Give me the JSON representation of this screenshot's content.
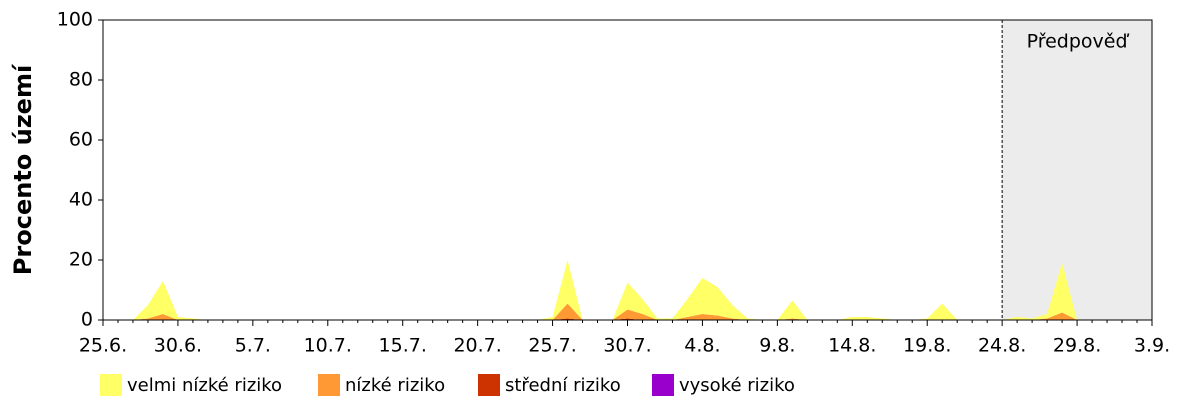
{
  "chart_data": {
    "type": "stacked-area",
    "y_label": "Procento území",
    "forecast": {
      "label": "Předpověď",
      "from": "24.8."
    },
    "categories": [
      "25.6.",
      null,
      null,
      null,
      null,
      "30.6.",
      null,
      null,
      null,
      null,
      "5.7.",
      null,
      null,
      null,
      null,
      "10.7.",
      null,
      null,
      null,
      null,
      "15.7.",
      null,
      null,
      null,
      null,
      "20.7.",
      null,
      null,
      null,
      null,
      "25.7.",
      null,
      null,
      null,
      null,
      "30.7.",
      null,
      null,
      null,
      null,
      "4.8.",
      null,
      null,
      null,
      null,
      "9.8.",
      null,
      null,
      null,
      null,
      "14.8.",
      null,
      null,
      null,
      null,
      "19.8.",
      null,
      null,
      null,
      null,
      "24.8.",
      null,
      null,
      null,
      null,
      "29.8.",
      null,
      null,
      null,
      null,
      "3.9."
    ],
    "series": [
      {
        "name": "velmi nízké riziko",
        "color": "#ffff66",
        "values": [
          0,
          0,
          0,
          4.5,
          11,
          1,
          0.5,
          0,
          0,
          0,
          0,
          0,
          0,
          0,
          0,
          0,
          0,
          0,
          0,
          0,
          0,
          0,
          0,
          0,
          0,
          0,
          0,
          0,
          0,
          0,
          1,
          14.5,
          0,
          0,
          0,
          9,
          5,
          0.5,
          0.5,
          6,
          12,
          9.5,
          4.5,
          0.5,
          0,
          0,
          6,
          0,
          0,
          0,
          1,
          1,
          0.5,
          0,
          0,
          0.5,
          5.5,
          0,
          0,
          0,
          0,
          1,
          0.5,
          1.5,
          16.5,
          0,
          0,
          0,
          0,
          0,
          0
        ]
      },
      {
        "name": "nízké riziko",
        "color": "#ff9933",
        "values": [
          0,
          0,
          0,
          0.5,
          2,
          0,
          0,
          0,
          0,
          0,
          0,
          0,
          0,
          0,
          0,
          0,
          0,
          0,
          0,
          0,
          0,
          0,
          0,
          0,
          0,
          0,
          0,
          0,
          0,
          0,
          0,
          5,
          0,
          0,
          0,
          3,
          2,
          0,
          0,
          1,
          2,
          1.5,
          0.5,
          0,
          0,
          0,
          0.5,
          0,
          0,
          0,
          0,
          0,
          0,
          0,
          0,
          0,
          0,
          0,
          0,
          0,
          0,
          0,
          0,
          0.5,
          2.5,
          0,
          0,
          0,
          0,
          0,
          0
        ]
      },
      {
        "name": "střední riziko",
        "color": "#cc3300",
        "values": [
          0,
          0,
          0,
          0,
          0,
          0,
          0,
          0,
          0,
          0,
          0,
          0,
          0,
          0,
          0,
          0,
          0,
          0,
          0,
          0,
          0,
          0,
          0,
          0,
          0,
          0,
          0,
          0,
          0,
          0,
          0,
          0.5,
          0,
          0,
          0,
          0.5,
          0,
          0,
          0,
          0,
          0,
          0,
          0,
          0,
          0,
          0,
          0,
          0,
          0,
          0,
          0,
          0,
          0,
          0,
          0,
          0,
          0,
          0,
          0,
          0,
          0,
          0,
          0,
          0,
          0,
          0,
          0,
          0,
          0,
          0,
          0
        ]
      },
      {
        "name": "vysoké riziko",
        "color": "#9900cc",
        "values": [
          0,
          0,
          0,
          0,
          0,
          0,
          0,
          0,
          0,
          0,
          0,
          0,
          0,
          0,
          0,
          0,
          0,
          0,
          0,
          0,
          0,
          0,
          0,
          0,
          0,
          0,
          0,
          0,
          0,
          0,
          0,
          0,
          0,
          0,
          0,
          0,
          0,
          0,
          0,
          0,
          0,
          0,
          0,
          0,
          0,
          0,
          0,
          0,
          0,
          0,
          0,
          0,
          0,
          0,
          0,
          0,
          0,
          0,
          0,
          0,
          0,
          0,
          0,
          0,
          0,
          0,
          0,
          0,
          0,
          0,
          0
        ]
      }
    ],
    "ylim": [
      0,
      100
    ],
    "yticks": [
      0,
      20,
      40,
      60,
      80,
      100
    ]
  }
}
